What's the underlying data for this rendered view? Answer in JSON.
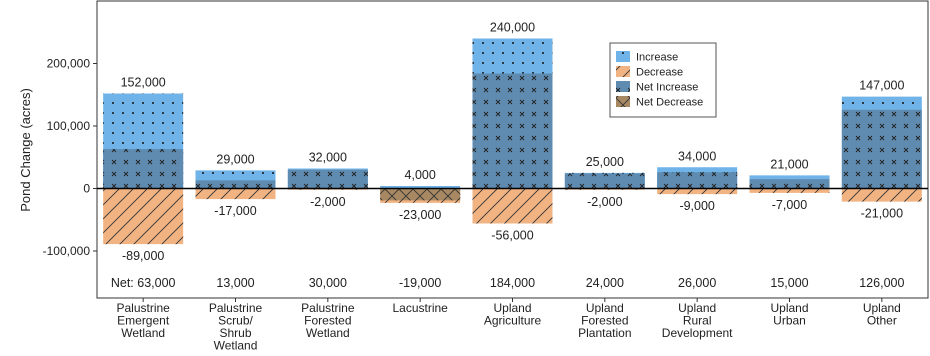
{
  "chart_data": {
    "type": "bar",
    "title": "",
    "xlabel": "",
    "ylabel": "Pond Change (acres)",
    "ylim": [
      -160000,
      300000
    ],
    "yticks": [
      {
        "value": 200000,
        "label": "200,000"
      },
      {
        "value": 100000,
        "label": "100,000"
      },
      {
        "value": 0,
        "label": "0"
      },
      {
        "value": -100000,
        "label": "-100,000"
      }
    ],
    "categories": [
      [
        "Palustrine",
        "Emergent",
        "Wetland"
      ],
      [
        "Palustrine",
        "Scrub/",
        "Shrub",
        "Wetland"
      ],
      [
        "Palustrine",
        "Forested",
        "Wetland"
      ],
      [
        "Lacustrine"
      ],
      [
        "Upland",
        "Agriculture"
      ],
      [
        "Upland",
        "Forested",
        "Plantation"
      ],
      [
        "Upland",
        "Rural",
        "Development"
      ],
      [
        "Upland",
        "Urban"
      ],
      [
        "Upland",
        "Other"
      ]
    ],
    "increase": [
      152000,
      29000,
      32000,
      4000,
      240000,
      25000,
      34000,
      21000,
      147000
    ],
    "decrease": [
      -89000,
      -17000,
      -2000,
      -23000,
      -56000,
      -2000,
      -9000,
      -7000,
      -21000
    ],
    "net": [
      63000,
      13000,
      30000,
      -19000,
      184000,
      24000,
      26000,
      15000,
      126000
    ],
    "increase_labels": [
      "152,000",
      "29,000",
      "32,000",
      "4,000",
      "240,000",
      "25,000",
      "34,000",
      "21,000",
      "147,000"
    ],
    "decrease_labels": [
      "-89,000",
      "-17,000",
      "-2,000",
      "-23,000",
      "-56,000",
      "-2,000",
      "-9,000",
      "-7,000",
      "-21,000"
    ],
    "net_labels": [
      "Net: 63,000",
      "13,000",
      "30,000",
      "-19,000",
      "184,000",
      "24,000",
      "26,000",
      "15,000",
      "126,000"
    ],
    "legend": {
      "placement": "top-right",
      "items": [
        {
          "key": "increase",
          "label": "Increase"
        },
        {
          "key": "decrease",
          "label": "Decrease"
        },
        {
          "key": "net_increase",
          "label": "Net Increase"
        },
        {
          "key": "net_decrease",
          "label": "Net Decrease"
        }
      ]
    },
    "colors": {
      "increase": "#6fb3e8",
      "decrease": "#f2b383",
      "net_increase": "#5f8bb0",
      "net_decrease": "#a88862"
    },
    "grid": false
  }
}
